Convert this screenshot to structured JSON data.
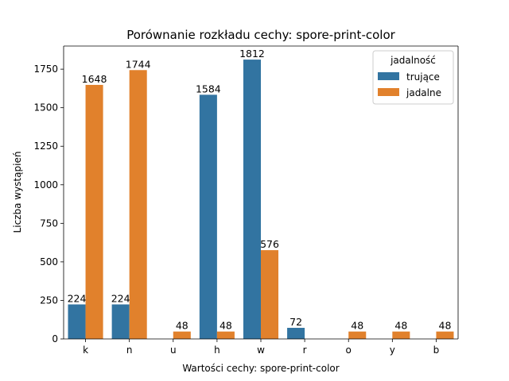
{
  "chart_data": {
    "type": "bar",
    "title": "Porównanie rozkładu cechy: spore-print-color",
    "xlabel": "Wartości cechy: spore-print-color",
    "ylabel": "Liczba wystąpień",
    "categories": [
      "k",
      "n",
      "u",
      "h",
      "w",
      "r",
      "o",
      "y",
      "b"
    ],
    "series": [
      {
        "name": "trujące",
        "color": "#3274a1",
        "values": [
          224,
          224,
          null,
          1584,
          1812,
          72,
          null,
          null,
          null
        ]
      },
      {
        "name": "jadalne",
        "color": "#e1812c",
        "values": [
          1648,
          1744,
          48,
          48,
          576,
          null,
          48,
          48,
          48
        ]
      }
    ],
    "ylim": [
      0,
      1900
    ],
    "yticks": [
      0,
      250,
      500,
      750,
      1000,
      1250,
      1500,
      1750
    ],
    "legend": {
      "title": "jadalność",
      "position": "top-right"
    },
    "grid": false
  }
}
